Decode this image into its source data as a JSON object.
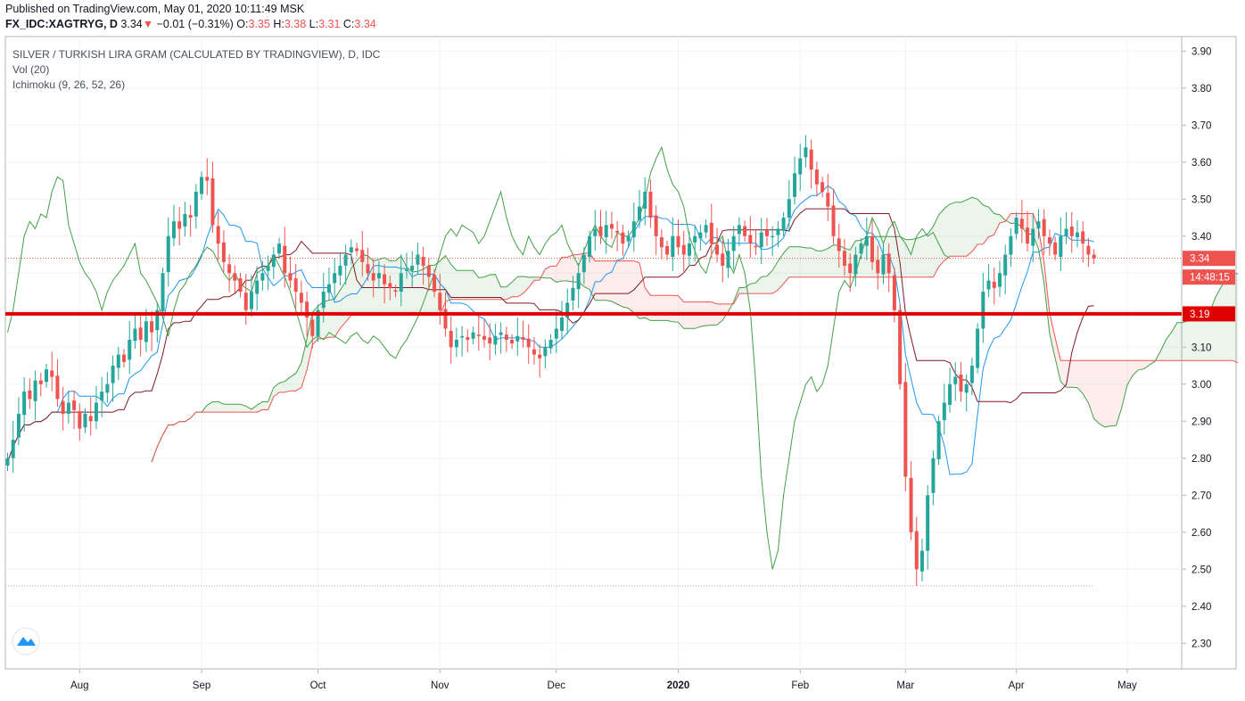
{
  "header": {
    "published": "Published on TradingView.com, May 01, 2020 10:11:49 MSK",
    "symbol": "FX_IDC:XAGTRYG, D",
    "last": "3.34",
    "change_arrow": "▼",
    "change": "−0.01 (−0.31%)",
    "o_label": "O:",
    "o_value": "3.35",
    "h_label": "H:",
    "h_value": "3.38",
    "l_label": "L:",
    "l_value": "3.31",
    "c_label": "C:",
    "c_value": "3.34"
  },
  "legend": {
    "title": "SILVER / TURKISH LIRA GRAM (CALCULATED BY TRADINGVIEW), D, IDC",
    "vol": "Vol (20)",
    "ichimoku": "Ichimoku (9, 26, 52, 26)"
  },
  "price_tags": {
    "last": "3.34",
    "countdown": "14:48:15",
    "hline": "3.19"
  },
  "colors": {
    "up": "#26a69a",
    "down": "#ef5350",
    "conversion": "#2196f3",
    "base": "#801922",
    "lagging": "#43a047",
    "cloud_up": "#43a047",
    "cloud_down": "#ef5350",
    "hline": "#e00000"
  },
  "chart_data": {
    "type": "candlestick",
    "title": "SILVER / TURKISH LIRA GRAM (CALCULATED BY TRADINGVIEW), D, IDC",
    "ylim": [
      2.25,
      3.92
    ],
    "y_ticks": [
      "3.90",
      "3.80",
      "3.70",
      "3.60",
      "3.50",
      "3.40",
      "3.30",
      "3.20",
      "3.10",
      "3.00",
      "2.90",
      "2.80",
      "2.70",
      "2.60",
      "2.50",
      "2.40",
      "2.30"
    ],
    "x_ticks": [
      "Aug",
      "Sep",
      "Oct",
      "Nov",
      "Dec",
      "2020",
      "Feb",
      "Mar",
      "Apr",
      "May"
    ],
    "x_tick_bars": [
      13,
      35,
      56,
      78,
      99,
      121,
      143,
      162,
      182,
      202
    ],
    "horizontal_line": 3.19,
    "last_price": 3.34,
    "low_marker": 2.455,
    "grid": true,
    "ohlc_close_path": [
      2.8,
      2.85,
      2.92,
      2.98,
      2.96,
      3.01,
      3.0,
      3.04,
      3.02,
      2.96,
      2.92,
      2.95,
      2.93,
      2.88,
      2.92,
      2.9,
      2.95,
      2.98,
      3.0,
      3.05,
      3.08,
      3.06,
      3.12,
      3.15,
      3.12,
      3.17,
      3.14,
      3.2,
      3.3,
      3.4,
      3.44,
      3.42,
      3.46,
      3.45,
      3.52,
      3.56,
      3.55,
      3.43,
      3.38,
      3.33,
      3.3,
      3.28,
      3.25,
      3.2,
      3.25,
      3.28,
      3.3,
      3.32,
      3.35,
      3.38,
      3.3,
      3.28,
      3.25,
      3.22,
      3.18,
      3.13,
      3.2,
      3.25,
      3.27,
      3.3,
      3.32,
      3.35,
      3.37,
      3.36,
      3.33,
      3.3,
      3.28,
      3.3,
      3.27,
      3.26,
      3.25,
      3.3,
      3.31,
      3.32,
      3.35,
      3.32,
      3.29,
      3.25,
      3.2,
      3.15,
      3.1,
      3.12,
      3.13,
      3.12,
      3.14,
      3.13,
      3.12,
      3.11,
      3.13,
      3.14,
      3.12,
      3.11,
      3.13,
      3.12,
      3.1,
      3.08,
      3.07,
      3.1,
      3.12,
      3.15,
      3.18,
      3.22,
      3.26,
      3.3,
      3.35,
      3.4,
      3.42,
      3.4,
      3.43,
      3.42,
      3.41,
      3.38,
      3.4,
      3.44,
      3.48,
      3.52,
      3.45,
      3.4,
      3.37,
      3.35,
      3.4,
      3.37,
      3.35,
      3.38,
      3.4,
      3.41,
      3.43,
      3.38,
      3.35,
      3.32,
      3.36,
      3.4,
      3.43,
      3.4,
      3.38,
      3.37,
      3.41,
      3.4,
      3.4,
      3.42,
      3.45,
      3.5,
      3.57,
      3.61,
      3.64,
      3.58,
      3.54,
      3.52,
      3.48,
      3.4,
      3.36,
      3.32,
      3.3,
      3.35,
      3.38,
      3.4,
      3.33,
      3.3,
      3.35,
      3.3,
      3.2,
      3.0,
      2.75,
      2.6,
      2.5,
      2.55,
      2.7,
      2.8,
      2.9,
      2.95,
      3.0,
      3.02,
      2.98,
      3.0,
      3.05,
      3.15,
      3.25,
      3.28,
      3.26,
      3.3,
      3.35,
      3.4,
      3.45,
      3.42,
      3.38,
      3.42,
      3.44,
      3.4,
      3.38,
      3.35,
      3.4,
      3.42,
      3.4,
      3.41,
      3.38,
      3.35,
      3.34
    ]
  }
}
